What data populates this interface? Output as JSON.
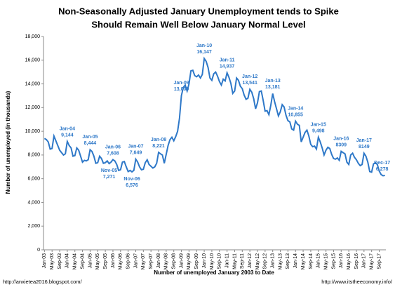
{
  "chart_data": {
    "type": "line",
    "title": "Non-Seasonally Adjusted January Unemployment tends to Spike",
    "subtitle": "Should Remain Well Below January Normal Level",
    "y_label": "Number of unemployed (in thousands)",
    "x_label": "Number of unemployed January 2003 to Date",
    "footer_left": "http://anxietea2016.blogspot.com/",
    "footer_right": "http://www.itstheeconomy.info/",
    "color": "#2e78c8",
    "ylim": [
      0,
      18000
    ],
    "yticks": [
      0,
      {
        "value": 2000,
        "label": "2,000"
      },
      {
        "value": 4000,
        "label": "4,000"
      },
      {
        "value": 6000,
        "label": "6,000"
      },
      {
        "value": 8000,
        "label": "8,000"
      },
      {
        "value": 10000,
        "label": "10,000"
      },
      {
        "value": 12000,
        "label": "12,000"
      },
      {
        "value": 14000,
        "label": "14,000"
      },
      {
        "value": 16000,
        "label": "16,000"
      },
      {
        "value": 18000,
        "label": "18,000"
      }
    ],
    "grid": false,
    "categories": [
      "Jan-03",
      null,
      null,
      null,
      "May-03",
      null,
      null,
      null,
      "Sep-03",
      null,
      null,
      null,
      "Jan-04",
      null,
      null,
      null,
      "May-04",
      null,
      null,
      null,
      "Sep-04",
      null,
      null,
      null,
      "Jan-05",
      null,
      null,
      null,
      "May-05",
      null,
      null,
      null,
      "Sep-05",
      null,
      null,
      null,
      "Jan-06",
      null,
      null,
      null,
      "May-06",
      null,
      null,
      null,
      "Sep-06",
      null,
      null,
      null,
      "Jan-07",
      null,
      null,
      null,
      "May-07",
      null,
      null,
      null,
      "Sep-07",
      null,
      null,
      null,
      "Jan-08",
      null,
      null,
      null,
      "May-08",
      null,
      null,
      null,
      "Sep-08",
      null,
      null,
      null,
      "Jan-09",
      null,
      null,
      null,
      "May-09",
      null,
      null,
      null,
      "Sep-09",
      null,
      null,
      null,
      "Jan-10",
      null,
      null,
      null,
      "May-10",
      null,
      null,
      null,
      "Sep-10",
      null,
      null,
      null,
      "Jan-11",
      null,
      null,
      null,
      "May-11",
      null,
      null,
      null,
      "Sep-11",
      null,
      null,
      null,
      "Jan-12",
      null,
      null,
      null,
      "May-12",
      null,
      null,
      null,
      "Sep-12",
      null,
      null,
      null,
      "Jan-13",
      null,
      null,
      null,
      "May-13",
      null,
      null,
      null,
      "Sep-13",
      null,
      null,
      null,
      "Jan-14",
      null,
      null,
      null,
      "May-14",
      null,
      null,
      null,
      "Sep-14",
      null,
      null,
      null,
      "Jan-15",
      null,
      null,
      null,
      "May-15",
      null,
      null,
      null,
      "Sep-15",
      null,
      null,
      null,
      "Jan-16",
      null,
      null,
      null,
      "May-16",
      null,
      null,
      null,
      "Sep-16",
      null,
      null,
      null,
      "Jan-17",
      null,
      null,
      null,
      "May-17",
      null,
      null,
      null,
      "Sep-17",
      null,
      null,
      null
    ],
    "values": [
      9400,
      9300,
      9100,
      8500,
      8550,
      9600,
      9200,
      8800,
      8400,
      8200,
      8000,
      8100,
      9144,
      8800,
      8600,
      7900,
      7950,
      8600,
      8400,
      7900,
      7400,
      7550,
      7500,
      7600,
      8444,
      8300,
      7900,
      7300,
      7350,
      7900,
      7700,
      7300,
      7350,
      7500,
      7271,
      7400,
      7608,
      7500,
      7200,
      6700,
      6750,
      7400,
      7450,
      7000,
      6600,
      6700,
      6576,
      6700,
      7649,
      7400,
      7000,
      6750,
      6800,
      7350,
      7600,
      7200,
      7050,
      6900,
      7000,
      7300,
      8221,
      8100,
      8000,
      7300,
      8050,
      8800,
      9300,
      9500,
      9200,
      9550,
      10000,
      11100,
      13009,
      13700,
      13900,
      13400,
      14000,
      15100,
      15150,
      14700,
      14600,
      14750,
      14500,
      14800,
      16147,
      15900,
      15400,
      14500,
      14300,
      14850,
      15000,
      14650,
      14200,
      13900,
      14400,
      14250,
      14937,
      14550,
      14050,
      13200,
      13400,
      14500,
      14300,
      13800,
      13600,
      13050,
      12700,
      12800,
      13541,
      13300,
      12750,
      11900,
      12400,
      13350,
      13400,
      12600,
      11700,
      11750,
      11400,
      12200,
      13181,
      12500,
      11900,
      11300,
      11650,
      12250,
      12050,
      11350,
      10900,
      10800,
      10200,
      10100,
      10855,
      10600,
      10500,
      9100,
      9500,
      9900,
      10100,
      9600,
      8900,
      8700,
      8750,
      8500,
      9498,
      9100,
      8600,
      8000,
      8400,
      8650,
      8550,
      8050,
      7700,
      7650,
      7750,
      7550,
      8309,
      8200,
      8100,
      7400,
      7200,
      8000,
      8150,
      7800,
      7600,
      7300,
      7100,
      7200,
      8149,
      7900,
      7400,
      6600,
      6550,
      7250,
      7350,
      7200,
      6650,
      6350,
      6250,
      6278
    ],
    "annotations": [
      {
        "text": "Jan-04",
        "value": 9144,
        "label": "9,144"
      },
      {
        "text": "Jan-05",
        "value": 8444,
        "label": "8,444"
      },
      {
        "text": "Nov-05",
        "value": 7271,
        "label": "7,271"
      },
      {
        "text": "Jan-06",
        "value": 7608,
        "label": "7,608"
      },
      {
        "text": "Nov-06",
        "value": 6576,
        "label": "6,576"
      },
      {
        "text": "Jan-07",
        "value": 7649,
        "label": "7,649"
      },
      {
        "text": "Jan-08",
        "value": 8221,
        "label": "8,221"
      },
      {
        "text": "Jan-09",
        "value": 13009,
        "label": "13,009"
      },
      {
        "text": "Jan-10",
        "value": 16147,
        "label": "16,147"
      },
      {
        "text": "Jan-11",
        "value": 14937,
        "label": "14,937"
      },
      {
        "text": "Jan-12",
        "value": 13541,
        "label": "13,541"
      },
      {
        "text": "Jan-13",
        "value": 13181,
        "label": "13,181"
      },
      {
        "text": "Jan-14",
        "value": 10855,
        "label": "10,855"
      },
      {
        "text": "Jan-15",
        "value": 9498,
        "label": "9,498"
      },
      {
        "text": "Jan-16",
        "value": 8309
      },
      {
        "text": "Jan-17",
        "value": 8149
      },
      {
        "text": "Dec-17",
        "value": 6278,
        "label": "6,278"
      }
    ]
  }
}
